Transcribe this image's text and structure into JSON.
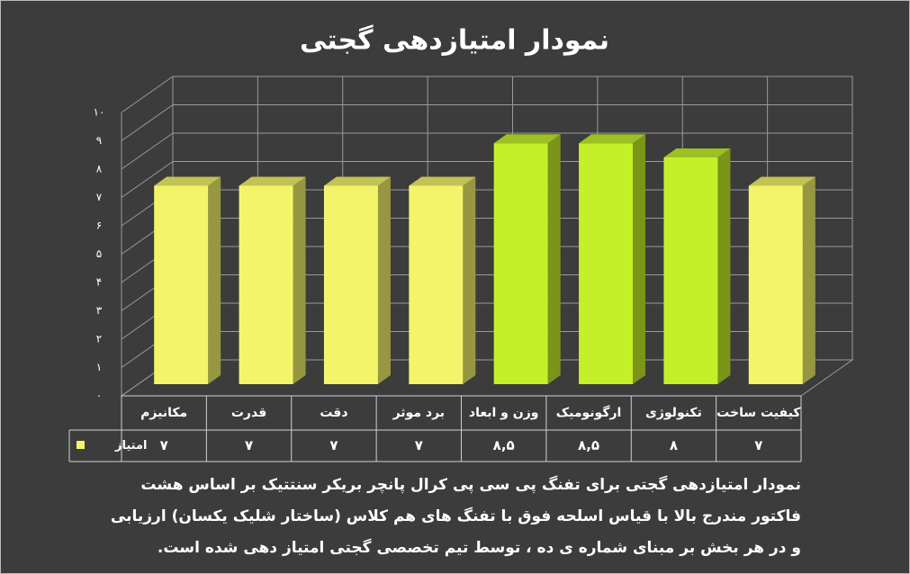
{
  "chart_data": {
    "type": "bar3d",
    "title": "نمودار امتیازدهی گجتی",
    "categories": [
      "مکانیزم",
      "قدرت",
      "دقت",
      "برد موثر",
      "وزن و ابعاد",
      "ارگونومیک",
      "تکنولوژی",
      "کیفیت ساخت"
    ],
    "series": [
      {
        "name": "امتیاز",
        "color": "#f4f46a",
        "colors": [
          "#f4f46a",
          "#f4f46a",
          "#f4f46a",
          "#f4f46a",
          "#c4f02a",
          "#c4f02a",
          "#c4f02a",
          "#f4f46a"
        ],
        "values": [
          7,
          7,
          7,
          7,
          8.5,
          8.5,
          8,
          7
        ],
        "value_labels": [
          "۷",
          "۷",
          "۷",
          "۷",
          "۸,۵",
          "۸,۵",
          "۸",
          "۷"
        ]
      }
    ],
    "ylim": [
      0,
      10
    ],
    "yticks": [
      {
        "value": 0,
        "label": "۰"
      },
      {
        "value": 1,
        "label": "۱"
      },
      {
        "value": 2,
        "label": "۲"
      },
      {
        "value": 3,
        "label": "۳"
      },
      {
        "value": 4,
        "label": "۴"
      },
      {
        "value": 5,
        "label": "۵"
      },
      {
        "value": 6,
        "label": "۶"
      },
      {
        "value": 7,
        "label": "۷"
      },
      {
        "value": 8,
        "label": "۸"
      },
      {
        "value": 9,
        "label": "۹"
      },
      {
        "value": 10,
        "label": "۱۰"
      }
    ],
    "grid": true,
    "caption": "نمودار امتیازدهی گجتی برای تفنگ پی سی پی کرال پانچر بریکر سنتتیک بر اساس هشت فاکتور مندرج بالا با قیاس اسلحه فوق با تفنگ های هم کلاس (ساختار شلیک یکسان) ارزیابی و در هر بخش بر مبنای شماره ی ده ، توسط تیم تخصصی گجتی امتیاز دهی شده است."
  }
}
